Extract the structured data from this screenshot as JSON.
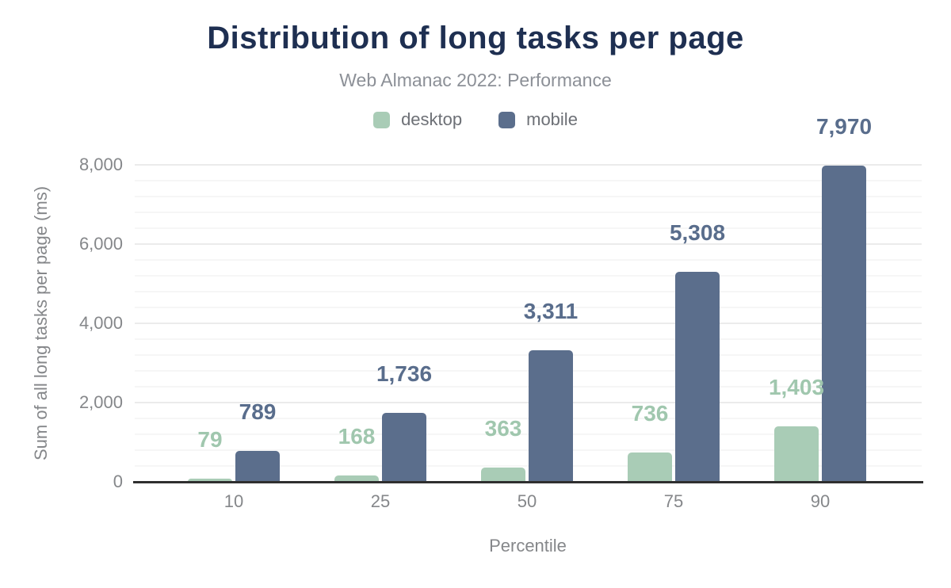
{
  "header": {
    "title": "Distribution of long tasks per page",
    "subtitle": "Web Almanac 2022: Performance"
  },
  "chart_data": {
    "type": "bar",
    "title": "Distribution of long tasks per page",
    "subtitle": "Web Almanac 2022: Performance",
    "categories": [
      "10",
      "25",
      "50",
      "75",
      "90"
    ],
    "series": [
      {
        "name": "desktop",
        "color": "#a9ccb6",
        "label_color": "#a0c7ae",
        "values": [
          79,
          168,
          363,
          736,
          1403
        ],
        "labels": [
          "79",
          "168",
          "363",
          "736",
          "1,403"
        ]
      },
      {
        "name": "mobile",
        "color": "#5b6e8c",
        "label_color": "#596d8c",
        "values": [
          789,
          1736,
          3311,
          5308,
          7970
        ],
        "labels": [
          "789",
          "1,736",
          "3,311",
          "5,308",
          "7,970"
        ]
      }
    ],
    "xlabel": "Percentile",
    "ylabel": "Sum of all long tasks per page (ms)",
    "ylim": [
      0,
      8000
    ],
    "yticks": [
      {
        "value": 0,
        "label": "0"
      },
      {
        "value": 2000,
        "label": "2,000"
      },
      {
        "value": 4000,
        "label": "4,000"
      },
      {
        "value": 6000,
        "label": "6,000"
      },
      {
        "value": 8000,
        "label": "8,000"
      }
    ],
    "grid": {
      "on": true,
      "minor_step": 400,
      "major_step": 2000
    },
    "legend_position": "top"
  },
  "colors": {
    "title": "#1e2f51",
    "subtitle": "#8c9097",
    "axis_text": "#85878a",
    "legend_text": "#6d7076",
    "baseline": "#2f2f2f",
    "grid_minor": "#f6f6f6",
    "grid_major": "#ebebeb",
    "background": "#ffffff"
  }
}
